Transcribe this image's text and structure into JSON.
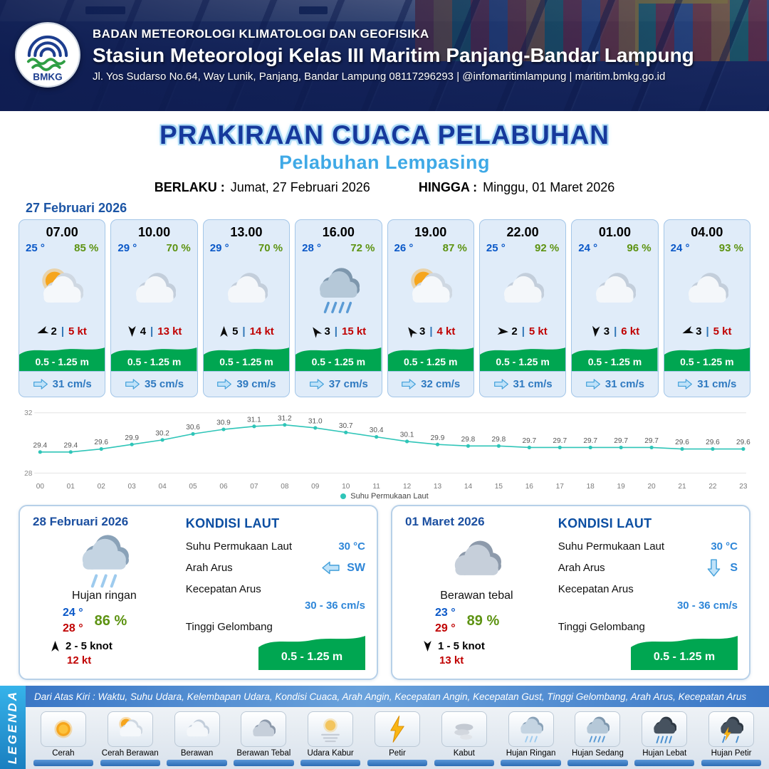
{
  "header": {
    "org": "BADAN METEOROLOGI KLIMATOLOGI DAN GEOFISIKA",
    "station": "Stasiun Meteorologi Kelas III Maritim Panjang-Bandar Lampung",
    "address": "Jl. Yos Sudarso No.64, Way Lunik, Panjang, Bandar Lampung 08117296293 | @infomaritimlampung | maritim.bmkg.go.id",
    "logo_text": "BMKG"
  },
  "title": {
    "main": "PRAKIRAAN CUACA PELABUHAN",
    "subtitle": "Pelabuhan Lempasing",
    "berlaku_label": "BERLAKU :",
    "berlaku_value": "Jumat, 27 Februari 2026",
    "hingga_label": "HINGGA :",
    "hingga_value": "Minggu, 01 Maret 2026"
  },
  "forecast_date": "27 Februari 2026",
  "forecast_cards": [
    {
      "time": "07.00",
      "temp": "25 °",
      "humidity": "85 %",
      "icon": "cerah-berawan",
      "wind_num": "2",
      "wind_speed": "5 kt",
      "wind_rot": 250,
      "wave": "0.5 - 1.25 m",
      "current": "31 cm/s"
    },
    {
      "time": "10.00",
      "temp": "29 °",
      "humidity": "70 %",
      "icon": "berawan",
      "wind_num": "4",
      "wind_speed": "13 kt",
      "wind_rot": 180,
      "wave": "0.5 - 1.25 m",
      "current": "35 cm/s"
    },
    {
      "time": "13.00",
      "temp": "29 °",
      "humidity": "70 %",
      "icon": "berawan",
      "wind_num": "5",
      "wind_speed": "14 kt",
      "wind_rot": 0,
      "wave": "0.5 - 1.25 m",
      "current": "39 cm/s"
    },
    {
      "time": "16.00",
      "temp": "28 °",
      "humidity": "72 %",
      "icon": "hujan-sedang",
      "wind_num": "3",
      "wind_speed": "15 kt",
      "wind_rot": 325,
      "wave": "0.5 - 1.25 m",
      "current": "37 cm/s"
    },
    {
      "time": "19.00",
      "temp": "26 °",
      "humidity": "87 %",
      "icon": "cerah-berawan",
      "wind_num": "3",
      "wind_speed": "4 kt",
      "wind_rot": 325,
      "wave": "0.5 - 1.25 m",
      "current": "32 cm/s"
    },
    {
      "time": "22.00",
      "temp": "25 °",
      "humidity": "92 %",
      "icon": "berawan",
      "wind_num": "2",
      "wind_speed": "5 kt",
      "wind_rot": 95,
      "wave": "0.5 - 1.25 m",
      "current": "31 cm/s"
    },
    {
      "time": "01.00",
      "temp": "24 °",
      "humidity": "96 %",
      "icon": "berawan",
      "wind_num": "3",
      "wind_speed": "6 kt",
      "wind_rot": 185,
      "wave": "0.5 - 1.25 m",
      "current": "31 cm/s"
    },
    {
      "time": "04.00",
      "temp": "24 °",
      "humidity": "93 %",
      "icon": "berawan",
      "wind_num": "3",
      "wind_speed": "5 kt",
      "wind_rot": 250,
      "wave": "0.5 - 1.25 m",
      "current": "31 cm/s"
    }
  ],
  "chart_data": {
    "type": "line",
    "title": "",
    "xlabel": "",
    "ylabel": "",
    "x": [
      "00",
      "01",
      "02",
      "03",
      "04",
      "05",
      "06",
      "07",
      "08",
      "09",
      "10",
      "11",
      "12",
      "13",
      "14",
      "15",
      "16",
      "17",
      "18",
      "19",
      "20",
      "21",
      "22",
      "23"
    ],
    "series": [
      {
        "name": "Suhu Permukaan Laut",
        "values": [
          29.4,
          29.4,
          29.6,
          29.9,
          30.2,
          30.6,
          30.9,
          31.1,
          31.2,
          31.0,
          30.7,
          30.4,
          30.1,
          29.9,
          29.8,
          29.8,
          29.7,
          29.7,
          29.7,
          29.7,
          29.7,
          29.6,
          29.6,
          29.6
        ]
      }
    ],
    "ylim": [
      28,
      32
    ],
    "yticks": [
      28,
      32
    ],
    "grid": true,
    "legend_position": "bottom",
    "line_color": "#2fc5b8"
  },
  "day_cards": [
    {
      "date": "28 Februari 2026",
      "icon": "hujan-ringan",
      "weather": "Hujan ringan",
      "temp_min": "24 °",
      "temp_max": "28 °",
      "humidity": "86 %",
      "wind_rot": 0,
      "wind_range": "2 - 5 knot",
      "gust": "12 kt",
      "sea": {
        "title": "KONDISI LAUT",
        "sst_label": "Suhu Permukaan Laut",
        "sst": "30 °C",
        "dir_label": "Arah Arus",
        "dir": "SW",
        "dir_rot": 180,
        "speed_label": "Kecepatan Arus",
        "speed": "30 - 36 cm/s",
        "wave_label": "Tinggi Gelombang",
        "wave": "0.5 - 1.25 m"
      }
    },
    {
      "date": "01 Maret 2026",
      "icon": "berawan-tebal",
      "weather": "Berawan tebal",
      "temp_min": "23 °",
      "temp_max": "29 °",
      "humidity": "89 %",
      "wind_rot": 180,
      "wind_range": "1 - 5 knot",
      "gust": "13 kt",
      "sea": {
        "title": "KONDISI LAUT",
        "sst_label": "Suhu Permukaan Laut",
        "sst": "30 °C",
        "dir_label": "Arah Arus",
        "dir": "S",
        "dir_rot": 90,
        "speed_label": "Kecepatan Arus",
        "speed": "30 - 36 cm/s",
        "wave_label": "Tinggi Gelombang",
        "wave": "0.5 - 1.25 m"
      }
    }
  ],
  "legend": {
    "title": "LEGENDA",
    "caption": "Dari Atas Kiri : Waktu, Suhu Udara, Kelembapan Udara, Kondisi Cuaca, Arah Angin, Kecepatan Angin, Kecepatan Gust, Tinggi Gelombang, Arah Arus, Kecepatan Arus",
    "items": [
      {
        "label": "Cerah",
        "icon": "cerah"
      },
      {
        "label": "Cerah Berawan",
        "icon": "cerah-berawan"
      },
      {
        "label": "Berawan",
        "icon": "berawan"
      },
      {
        "label": "Berawan Tebal",
        "icon": "berawan-tebal"
      },
      {
        "label": "Udara Kabur",
        "icon": "udara-kabur"
      },
      {
        "label": "Petir",
        "icon": "petir"
      },
      {
        "label": "Kabut",
        "icon": "kabut"
      },
      {
        "label": "Hujan Ringan",
        "icon": "hujan-ringan"
      },
      {
        "label": "Hujan Sedang",
        "icon": "hujan-sedang"
      },
      {
        "label": "Hujan Lebat",
        "icon": "hujan-lebat"
      },
      {
        "label": "Hujan Petir",
        "icon": "hujan-petir"
      }
    ]
  },
  "colors": {
    "navy_title": "#16399c",
    "light_blue": "#3fa9e6",
    "wave_green": "#00a651",
    "humidity_green": "#5d9312",
    "speed_red": "#c00000",
    "value_blue": "#2e86d8",
    "sst_line_teal": "#2fc5b8"
  }
}
